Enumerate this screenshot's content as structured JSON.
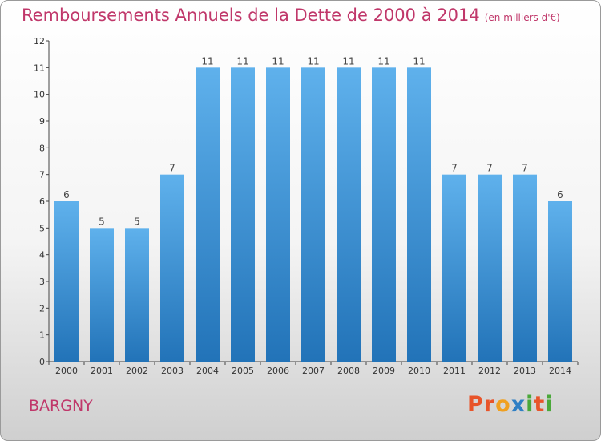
{
  "chart_data": {
    "type": "bar",
    "title": "Remboursements Annuels de la Dette de 2000 à 2014",
    "subtitle": "(en milliers d'€)",
    "categories": [
      "2000",
      "2001",
      "2002",
      "2003",
      "2004",
      "2005",
      "2006",
      "2007",
      "2008",
      "2009",
      "2010",
      "2011",
      "2012",
      "2013",
      "2014"
    ],
    "values": [
      6,
      5,
      5,
      7,
      11,
      11,
      11,
      11,
      11,
      11,
      11,
      7,
      7,
      7,
      6
    ],
    "ylim": [
      0,
      12
    ],
    "yticks": [
      0,
      1,
      2,
      3,
      4,
      5,
      6,
      7,
      8,
      9,
      10,
      11,
      12
    ],
    "grid": false,
    "bar_color": "#3d9be0"
  },
  "footer": {
    "city": "BARGNY",
    "logo": "Proxiti"
  },
  "colors": {
    "title": "#c0376a",
    "logo_letters": [
      "#e8542a",
      "#e8542a",
      "#f0a020",
      "#2f7fc4",
      "#4aa83a",
      "#e8542a",
      "#4aa83a"
    ]
  }
}
